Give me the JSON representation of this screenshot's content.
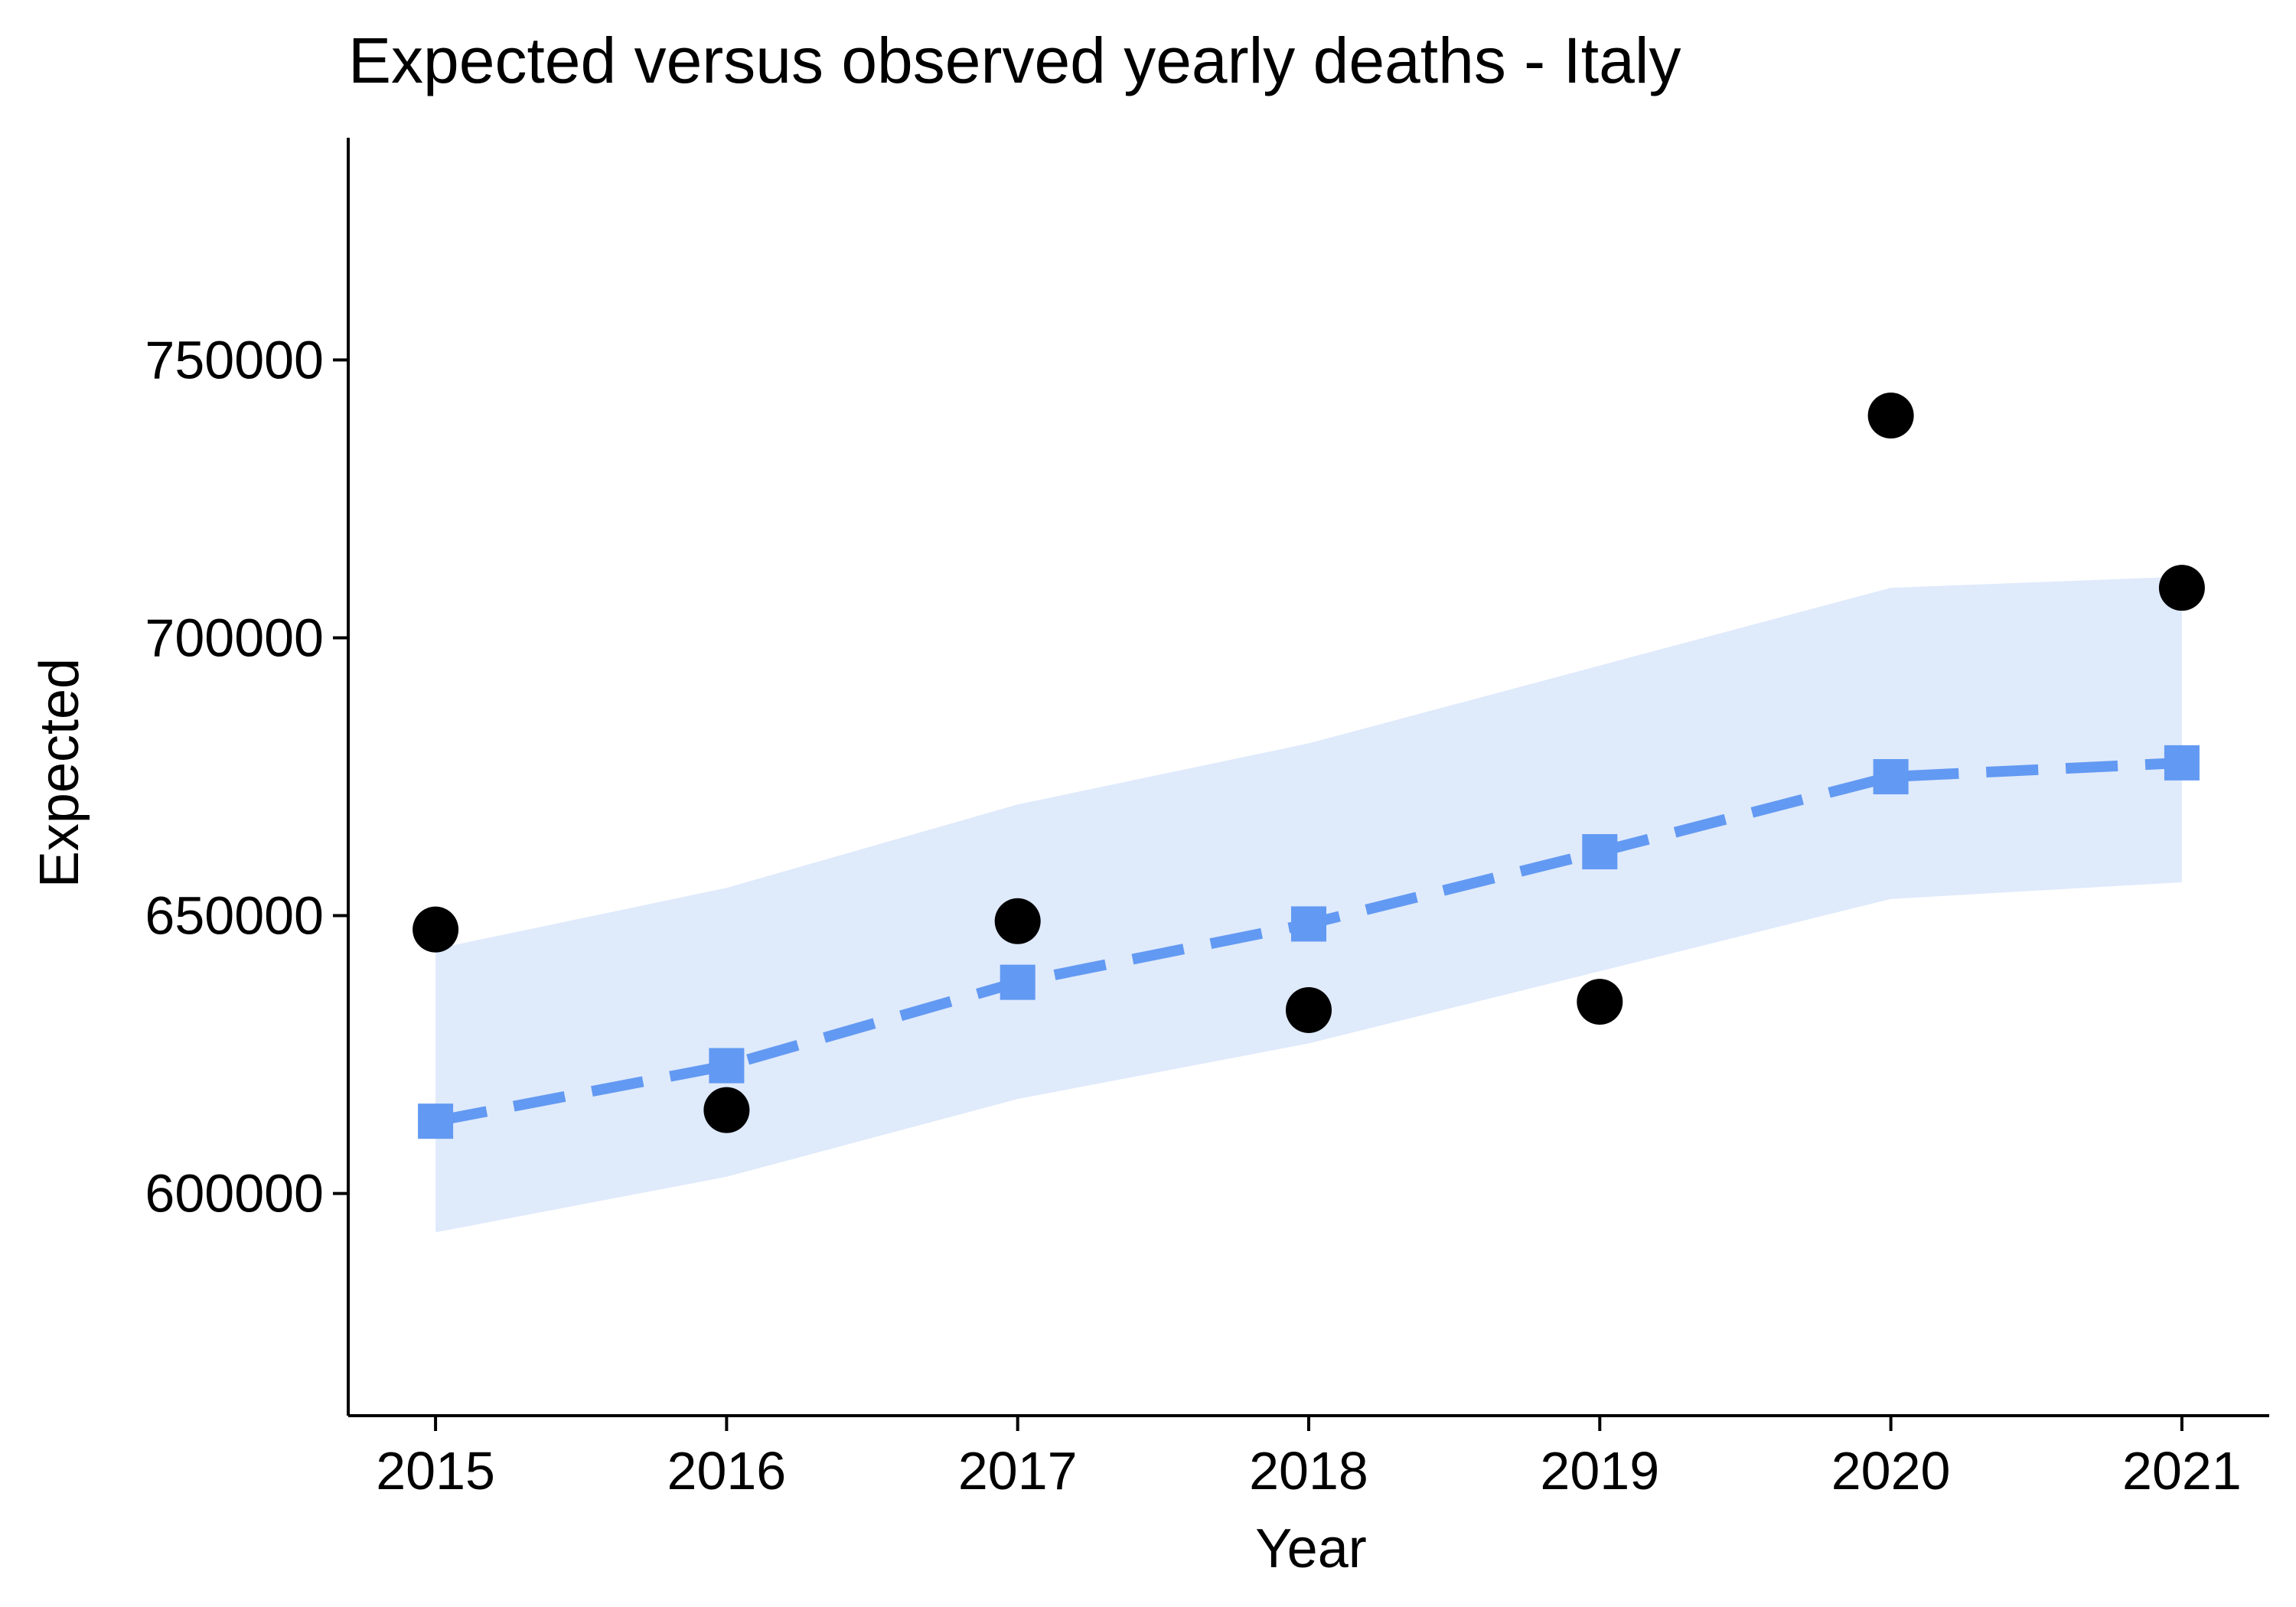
{
  "chart_data": {
    "type": "line",
    "title": "Expected versus observed yearly deaths - Italy",
    "xlabel": "Year",
    "ylabel": "Expected",
    "x": [
      2015,
      2016,
      2017,
      2018,
      2019,
      2020,
      2021
    ],
    "x_tick_labels": [
      "2015",
      "2016",
      "2017",
      "2018",
      "2019",
      "2020",
      "2021"
    ],
    "y_ticks": [
      600000,
      650000,
      700000,
      750000
    ],
    "y_tick_labels": [
      "600000",
      "650000",
      "700000",
      "750000"
    ],
    "xlim": [
      2014.7,
      2021.3
    ],
    "ylim": [
      560000,
      790000
    ],
    "grid": false,
    "legend": "none",
    "series": [
      {
        "kind": "band",
        "lower": [
          593000,
          603000,
          617000,
          627000,
          640000,
          653000,
          656000
        ],
        "upper": [
          644000,
          655000,
          670000,
          681000,
          695000,
          709000,
          711000
        ],
        "color": "#dfeafb"
      },
      {
        "kind": "line",
        "style": "dashed",
        "marker": "square",
        "values": [
          613000,
          623000,
          638000,
          648500,
          661500,
          675000,
          677500
        ],
        "color": "#6299f2"
      },
      {
        "kind": "points",
        "marker": "circle",
        "values": [
          647500,
          615000,
          649000,
          633000,
          634500,
          740000,
          709000
        ],
        "color": "#000000"
      }
    ]
  }
}
